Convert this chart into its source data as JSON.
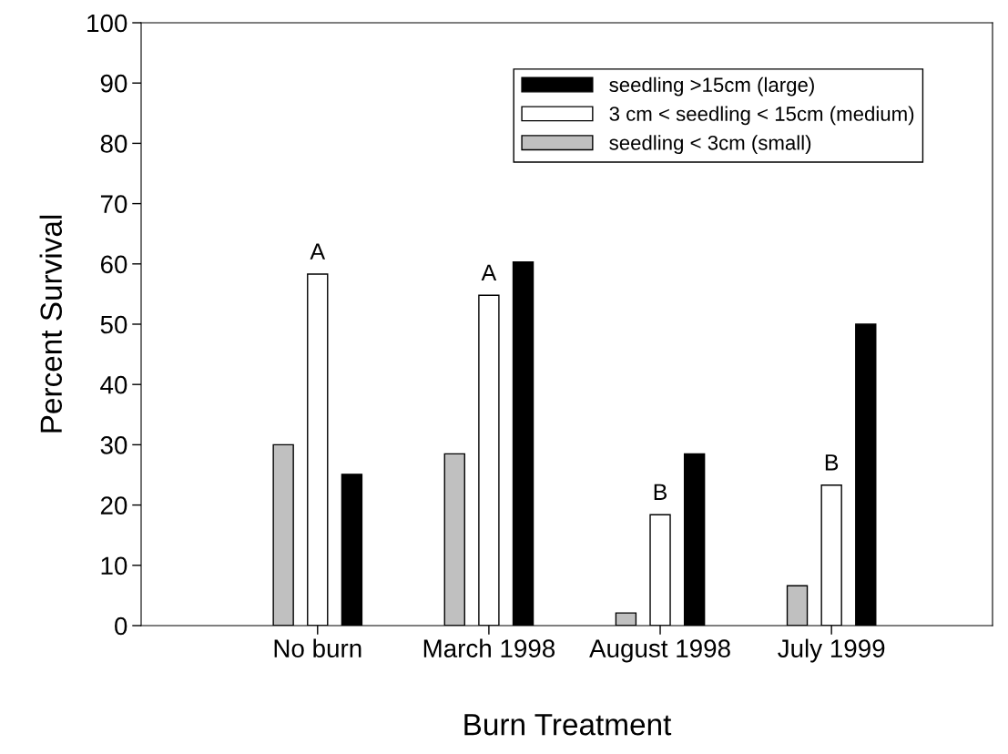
{
  "chart_data": {
    "type": "bar",
    "xlabel": "Burn Treatment",
    "ylabel": "Percent Survival",
    "categories": [
      "No burn",
      "March 1998",
      "August 1998",
      "July 1999"
    ],
    "series": [
      {
        "name": "seedling < 3cm (small)",
        "color": "#c0c0c0",
        "values": [
          30,
          28.5,
          2.1,
          6.6
        ]
      },
      {
        "name": "3 cm < seedling < 15cm (medium)",
        "color": "#ffffff",
        "values": [
          58.3,
          54.8,
          18.4,
          23.3
        ]
      },
      {
        "name": "seedling >15cm (large)",
        "color": "#000000",
        "values": [
          25.1,
          60.3,
          28.5,
          50
        ]
      }
    ],
    "ylim": [
      0,
      100
    ],
    "yticks": [
      0,
      10,
      20,
      30,
      40,
      50,
      60,
      70,
      80,
      90,
      100
    ],
    "annotations": [
      {
        "text": "A",
        "x": "No burn",
        "y": 58.3
      },
      {
        "text": "A",
        "x": "March 1998",
        "y": 54.8
      },
      {
        "text": "B",
        "x": "August 1998",
        "y": 18.4
      },
      {
        "text": "B",
        "x": "July 1999",
        "y": 23.3
      }
    ],
    "grid": false,
    "legend": "top right"
  }
}
